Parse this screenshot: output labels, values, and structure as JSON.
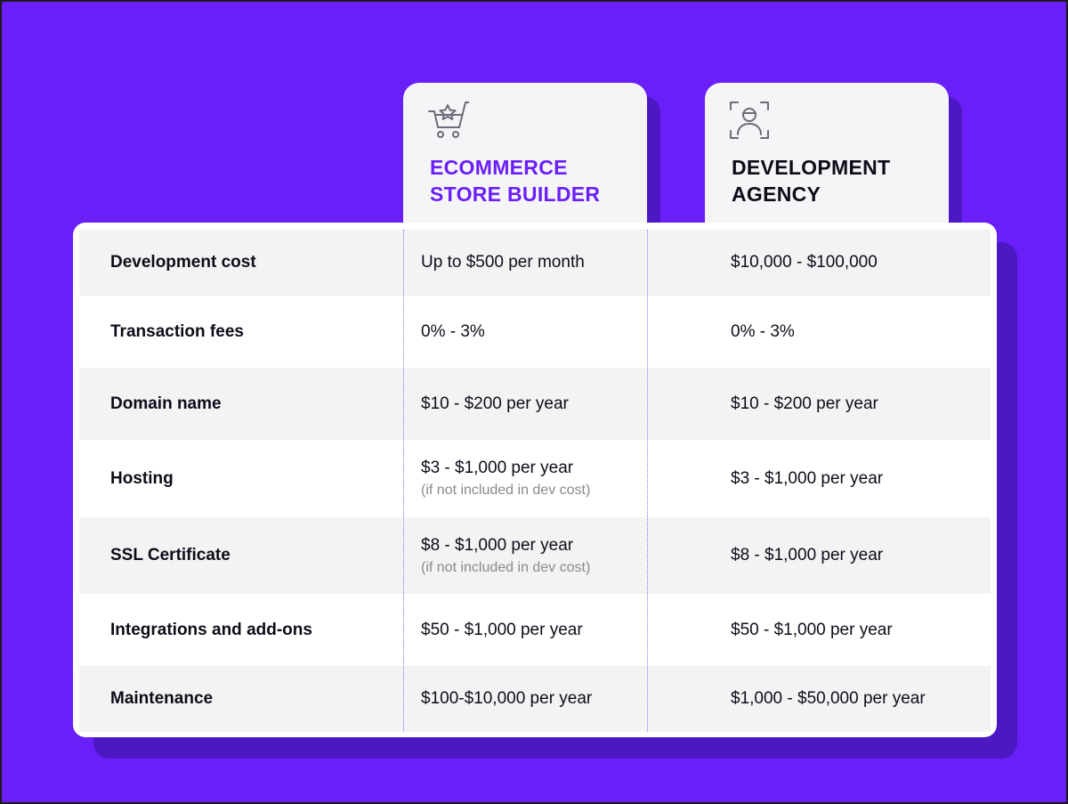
{
  "colors": {
    "background": "#6a1ff8",
    "shadow": "#4b18c4",
    "accent_text": "#6a1ff8",
    "dark_text": "#0d0d1a",
    "note_text": "#8a8a8f"
  },
  "columns": [
    {
      "title": "ECOMMERCE\nSTORE BUILDER",
      "icon": "cart-star-icon"
    },
    {
      "title": "DEVELOPMENT\nAGENCY",
      "icon": "person-scan-icon"
    }
  ],
  "rows": [
    {
      "label": "Development cost",
      "a": "Up to $500 per month",
      "a_note": "",
      "b": "$10,000 - $100,000"
    },
    {
      "label": "Transaction fees",
      "a": "0% - 3%",
      "a_note": "",
      "b": "0% - 3%"
    },
    {
      "label": "Domain name",
      "a": "$10 - $200 per year",
      "a_note": "",
      "b": "$10 - $200 per year"
    },
    {
      "label": "Hosting",
      "a": "$3 - $1,000 per year",
      "a_note": "(if not included in dev cost)",
      "b": "$3 - $1,000 per year"
    },
    {
      "label": "SSL Certificate",
      "a": "$8 - $1,000 per year",
      "a_note": "(if not included in dev cost)",
      "b": "$8 - $1,000 per year"
    },
    {
      "label": "Integrations and add-ons",
      "a": "$50 - $1,000 per year",
      "a_note": "",
      "b": "$50 - $1,000 per year"
    },
    {
      "label": "Maintenance",
      "a": "$100-$10,000 per year",
      "a_note": "",
      "b": "$1,000 - $50,000 per year"
    }
  ]
}
